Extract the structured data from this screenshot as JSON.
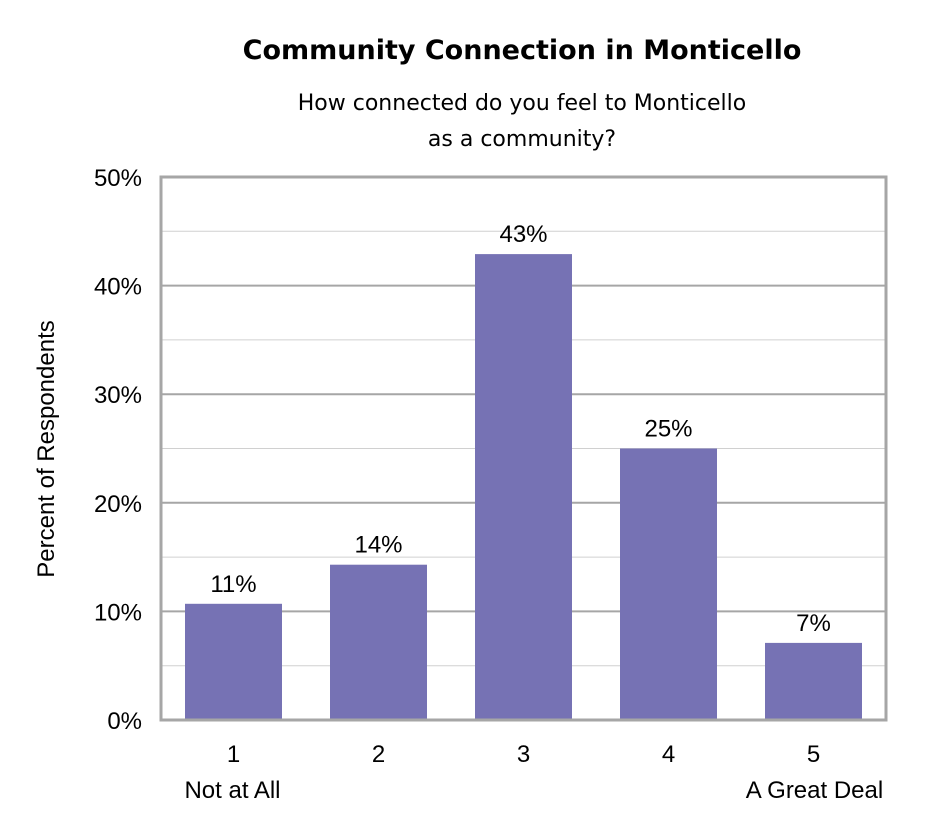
{
  "chart_data": {
    "type": "bar",
    "title": "Community Connection in Monticello",
    "subtitle": [
      "How connected do you feel to Monticello",
      "as a community?"
    ],
    "xlabel": "",
    "ylabel": "Percent of Respondents",
    "categories": [
      "1",
      "2",
      "3",
      "4",
      "5"
    ],
    "category_sublabels": [
      "Not at All",
      "",
      "",
      "",
      "A Great Deal"
    ],
    "values": [
      10.7,
      14.3,
      42.9,
      25.0,
      7.1
    ],
    "data_labels": [
      "11%",
      "14%",
      "43%",
      "25%",
      "7%"
    ],
    "ylim": [
      0,
      50
    ],
    "yticks": [
      "0%",
      "10%",
      "20%",
      "30%",
      "40%",
      "50%"
    ],
    "grid": true,
    "bar_color": "#7672b4",
    "grid_color": "#bfbfbf",
    "frame_color": "#a6a6a6"
  }
}
